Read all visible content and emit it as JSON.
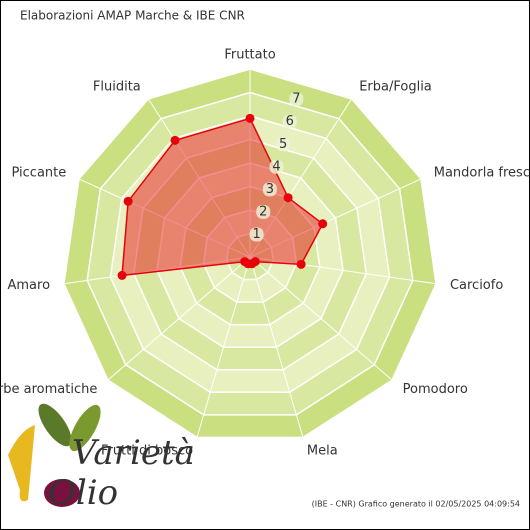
{
  "chart_data": {
    "type": "radar",
    "title": "Elaborazioni AMAP Marche & IBE CNR",
    "categories": [
      "Fruttato",
      "Erba/Foglia",
      "Mandorla fresca",
      "Carciofo",
      "Pomodoro",
      "Mela",
      "Frutti di bosco",
      "Erbe aromatiche",
      "Amaro",
      "Piccante",
      "Fluidita"
    ],
    "values": [
      5.9,
      3.0,
      3.4,
      2.2,
      0.3,
      0.3,
      0.3,
      0.3,
      5.5,
      5.7,
      5.9
    ],
    "color": "#e8000b",
    "rlim": [
      0,
      8
    ],
    "rticks": [
      1,
      2,
      3,
      4,
      5,
      6,
      7
    ],
    "footer": "(IBE - CNR) Grafico generato il 02/05/2025 04:09:54",
    "logo": {
      "line1": "Varietà",
      "line2": "Olio"
    }
  }
}
